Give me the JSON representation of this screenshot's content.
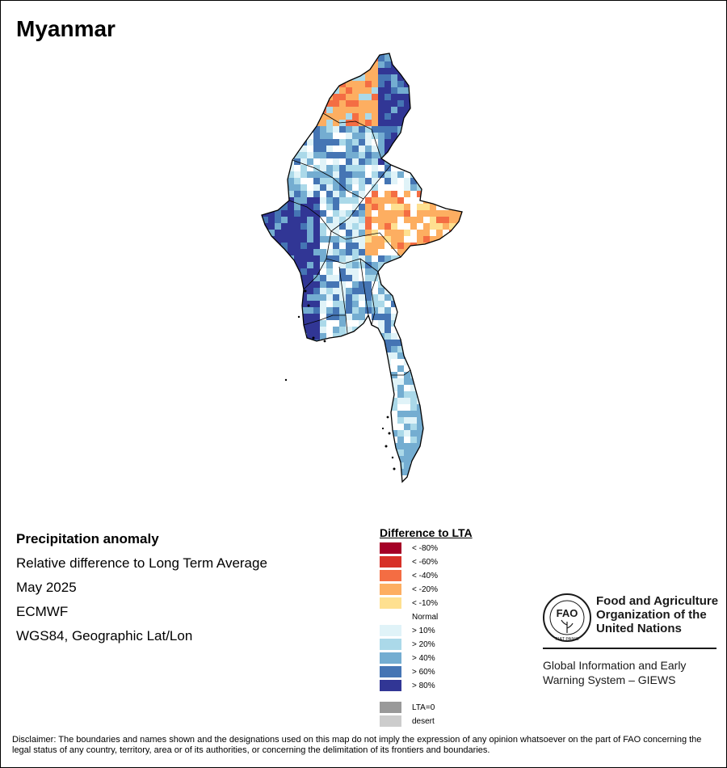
{
  "title": "Myanmar",
  "info": {
    "heading": "Precipitation anomaly",
    "line1": "Relative difference to Long Term Average",
    "line2": "May 2025",
    "line3": "ECMWF",
    "line4": "WGS84, Geographic Lat/Lon"
  },
  "legend": {
    "title": "Difference to LTA",
    "items": [
      {
        "label": "< -80%",
        "color": "#a50026"
      },
      {
        "label": "< -60%",
        "color": "#d73027"
      },
      {
        "label": "< -40%",
        "color": "#f46d43"
      },
      {
        "label": "< -20%",
        "color": "#fdae61"
      },
      {
        "label": "< -10%",
        "color": "#fee090"
      },
      {
        "label": "Normal",
        "color": "#ffffff"
      },
      {
        "label": "> 10%",
        "color": "#e0f3f8"
      },
      {
        "label": "> 20%",
        "color": "#abd9e9"
      },
      {
        "label": "> 40%",
        "color": "#74add1"
      },
      {
        "label": "> 60%",
        "color": "#4575b4"
      },
      {
        "label": "> 80%",
        "color": "#313695"
      },
      {
        "label": "LTA=0",
        "color": "#999999"
      },
      {
        "label": "desert",
        "color": "#cccccc"
      }
    ]
  },
  "fao": {
    "emblem_text": "FAO",
    "motto": "FIAT PANIS",
    "name_line1": "Food and Agriculture",
    "name_line2": "Organization of the",
    "name_line3": "United Nations",
    "giews_line1": "Global Information and Early",
    "giews_line2": "Warning System – GIEWS"
  },
  "disclaimer": "Disclaimer: The boundaries and names shown and the designations used on this map do not imply the expression of any opinion whatsoever on the part of FAO concerning the legal status of any country, territory, area or of its authorities, or concerning the delimitation of its frontiers and boundaries."
}
